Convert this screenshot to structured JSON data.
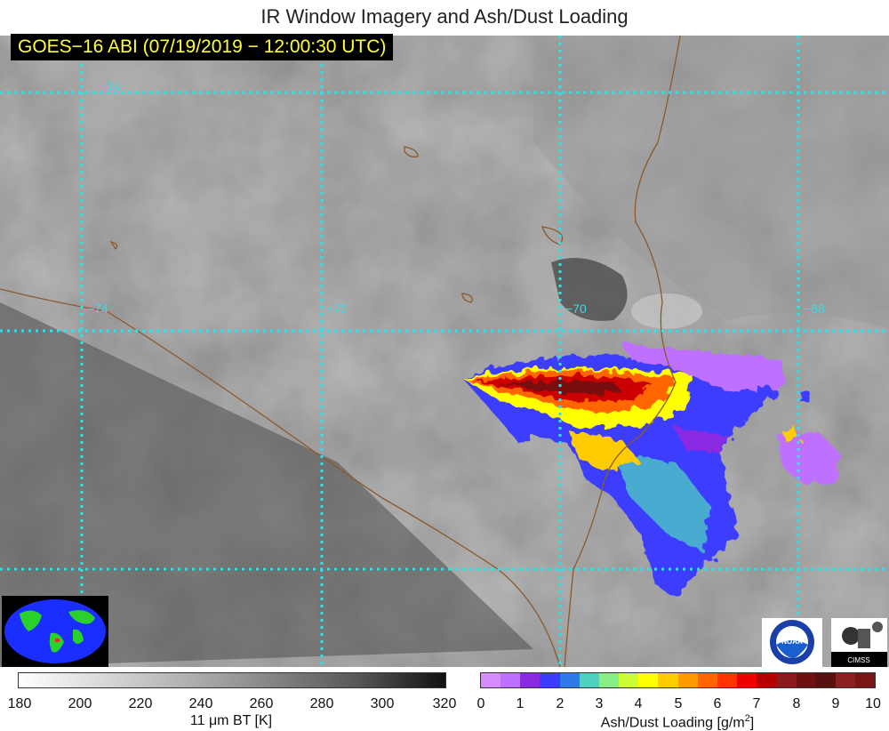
{
  "title": "IR Window Imagery and Ash/Dust Loading",
  "subtitle": "GOES−16 ABI (07/19/2019 − 12:00:30 UTC)",
  "grid": {
    "lat_labels": [
      "−14"
    ],
    "lon_labels": [
      "−74",
      "−72",
      "−70",
      "−68"
    ]
  },
  "bt_colorbar": {
    "ticks": [
      "180",
      "200",
      "220",
      "240",
      "260",
      "280",
      "300",
      "320"
    ],
    "label": "11 μm BT [K]"
  },
  "ash_colorbar": {
    "ticks": [
      "0",
      "1",
      "2",
      "3",
      "4",
      "5",
      "6",
      "7",
      "8",
      "9",
      "10"
    ],
    "label_main": "Ash/Dust Loading [g/m",
    "label_sup": "2",
    "label_end": "]",
    "colors": [
      "#d58cff",
      "#c070ff",
      "#8a2be2",
      "#3c3cff",
      "#2f7be6",
      "#4fd0c0",
      "#88ee88",
      "#ccff33",
      "#ffff00",
      "#ffcc00",
      "#ff9900",
      "#ff6600",
      "#ff3300",
      "#ee0000",
      "#b30000",
      "#8b1a1a",
      "#6e1010",
      "#5a0f0f",
      "#8b2020",
      "#7a1515"
    ]
  },
  "logos": {
    "noaa": "NOAA",
    "cimss": "CIMSS"
  },
  "colors": {
    "grid": "#33e0e8",
    "border": "#8b5a2b",
    "subtitle_text": "#ffff33"
  }
}
